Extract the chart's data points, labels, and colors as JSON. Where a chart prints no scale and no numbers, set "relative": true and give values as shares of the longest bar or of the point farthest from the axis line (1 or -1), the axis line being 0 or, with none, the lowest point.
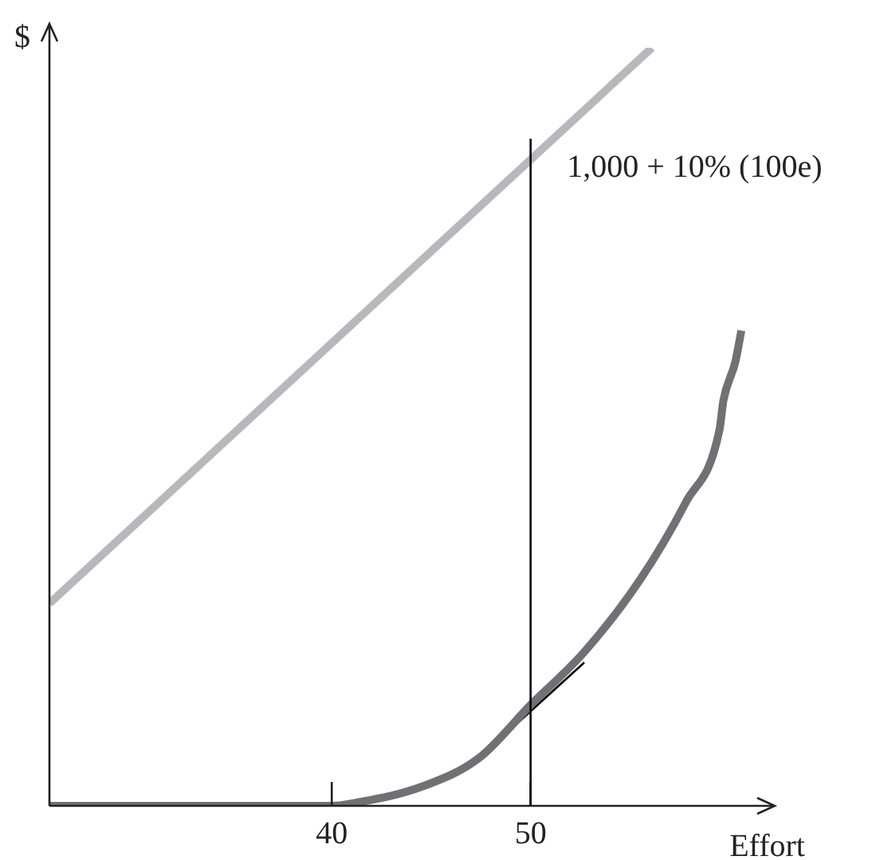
{
  "chart_data": {
    "type": "line",
    "relative": true,
    "xlabel": "Effort",
    "ylabel": "$",
    "xlim": [
      25.8,
      62.2
    ],
    "xticks": [
      40,
      50
    ],
    "grid": false,
    "legend": false,
    "marker": "none",
    "line_style": "solid",
    "series": [
      {
        "color": "#b8b8bc",
        "x": [
          25.8,
          56.1
        ],
        "values": [
          0.267,
          1
        ]
      },
      {
        "color": "#707075",
        "x": [
          25.8,
          40,
          41.2,
          44.6,
          47.4,
          50,
          52.7,
          55.5,
          57.8,
          59.5,
          59.7,
          60.3,
          60.6
        ],
        "values": [
          0,
          0,
          0.004,
          0.026,
          0.063,
          0.133,
          0.203,
          0.298,
          0.4,
          0.496,
          0.535,
          0.586,
          0.627
        ]
      },
      {
        "color": "#000000",
        "x": [
          47.4,
          52.7
        ],
        "values": [
          0.063,
          0.189
        ]
      }
    ],
    "ref_lines": [
      {
        "axis": "x",
        "value": 50,
        "color": "#000000"
      }
    ],
    "annotations": [
      "1,000 + 10% (100e)"
    ]
  }
}
